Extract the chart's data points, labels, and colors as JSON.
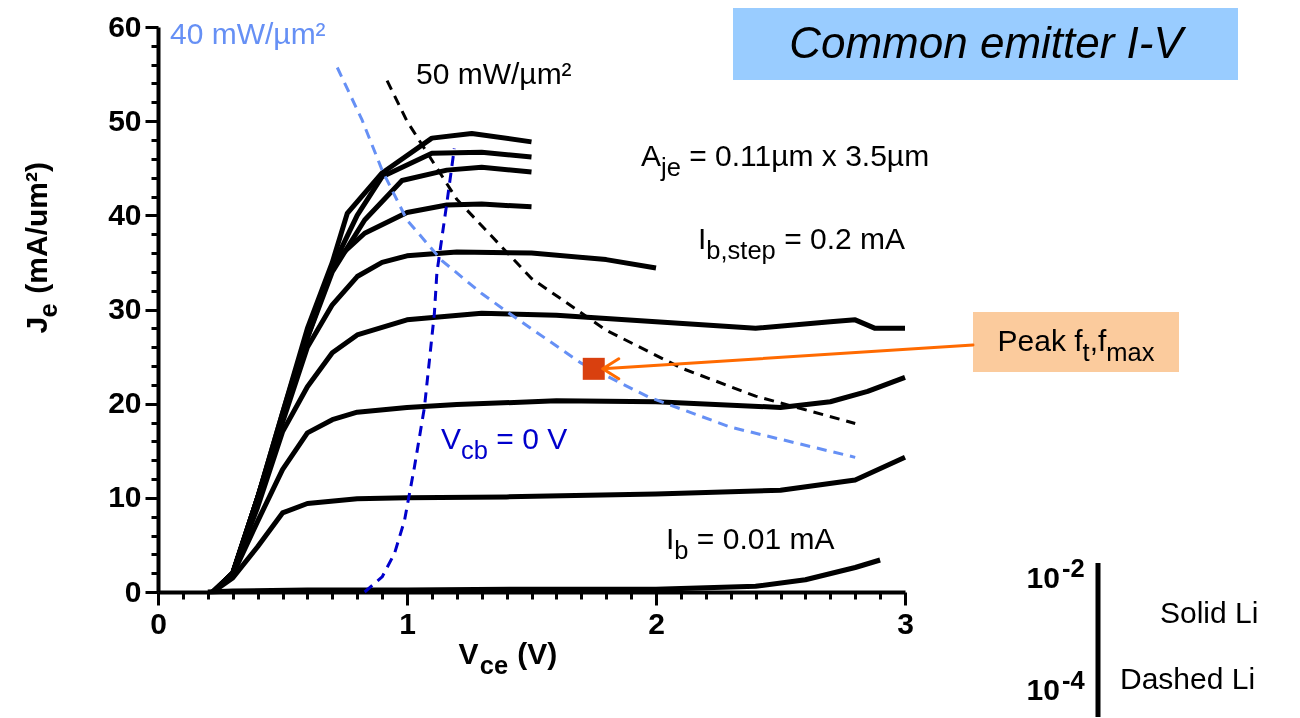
{
  "chart_data": [
    {
      "type": "line",
      "title": "Common emitter I-V",
      "xlabel": "V$_{ce}$ (V)",
      "ylabel": "J$_{e}$ (mA/um²)",
      "xlim": [
        0,
        3
      ],
      "ylim": [
        0,
        60
      ],
      "xticks": [
        0,
        {
          "value": 0.1,
          "label": null
        },
        {
          "value": 0.2,
          "label": null
        },
        {
          "value": 0.3,
          "label": null
        },
        {
          "value": 0.4,
          "label": null
        },
        {
          "value": 0.5,
          "label": null
        },
        {
          "value": 0.6,
          "label": null
        },
        {
          "value": 0.7,
          "label": null
        },
        {
          "value": 0.8,
          "label": null
        },
        {
          "value": 0.9,
          "label": null
        },
        1,
        {
          "value": 1.1,
          "label": null
        },
        {
          "value": 1.2,
          "label": null
        },
        {
          "value": 1.3,
          "label": null
        },
        {
          "value": 1.4,
          "label": null
        },
        {
          "value": 1.5,
          "label": null
        },
        {
          "value": 1.6,
          "label": null
        },
        {
          "value": 1.7,
          "label": null
        },
        {
          "value": 1.8,
          "label": null
        },
        {
          "value": 1.9,
          "label": null
        },
        2,
        {
          "value": 2.1,
          "label": null
        },
        {
          "value": 2.2,
          "label": null
        },
        {
          "value": 2.3,
          "label": null
        },
        {
          "value": 2.4,
          "label": null
        },
        {
          "value": 2.5,
          "label": null
        },
        {
          "value": 2.6,
          "label": null
        },
        {
          "value": 2.7,
          "label": null
        },
        {
          "value": 2.8,
          "label": null
        },
        {
          "value": 2.9,
          "label": null
        },
        3
      ],
      "yticks": [
        0,
        {
          "value": 2,
          "label": null
        },
        {
          "value": 4,
          "label": null
        },
        {
          "value": 6,
          "label": null
        },
        {
          "value": 8,
          "label": null
        },
        10,
        {
          "value": 12,
          "label": null
        },
        {
          "value": 14,
          "label": null
        },
        {
          "value": 16,
          "label": null
        },
        {
          "value": 18,
          "label": null
        },
        20,
        {
          "value": 22,
          "label": null
        },
        {
          "value": 24,
          "label": null
        },
        {
          "value": 26,
          "label": null
        },
        {
          "value": 28,
          "label": null
        },
        30,
        {
          "value": 32,
          "label": null
        },
        {
          "value": 34,
          "label": null
        },
        {
          "value": 36,
          "label": null
        },
        {
          "value": 38,
          "label": null
        },
        40,
        {
          "value": 42,
          "label": null
        },
        {
          "value": 44,
          "label": null
        },
        {
          "value": 46,
          "label": null
        },
        {
          "value": 48,
          "label": null
        },
        50,
        {
          "value": 52,
          "label": null
        },
        {
          "value": 54,
          "label": null
        },
        {
          "value": 56,
          "label": null
        },
        {
          "value": 58,
          "label": null
        },
        60
      ],
      "line_style": "solid",
      "annotations": [
        "A$_{je}$ = 0.11µm x 3.5µm",
        "I$_{b,step}$ = 0.2 mA",
        "Peak f$_{t}$,f$_{max}$"
      ],
      "series": [
        {
          "name": "I$_{b}$ = 0.01 mA",
          "color": "#000000",
          "x": [
            0.2,
            0.3,
            0.6,
            1.0,
            1.5,
            2.0,
            2.4,
            2.6,
            2.8,
            2.9
          ],
          "values": [
            0,
            0.1,
            0.2,
            0.2,
            0.3,
            0.3,
            0.6,
            1.3,
            2.6,
            3.4
          ]
        },
        {
          "color": "#000000",
          "x": [
            0.22,
            0.3,
            0.4,
            0.5,
            0.6,
            0.8,
            1.0,
            1.4,
            2.0,
            2.5,
            2.8,
            3.0
          ],
          "values": [
            0,
            1.5,
            4.8,
            8.4,
            9.4,
            9.9,
            10.0,
            10.1,
            10.4,
            10.8,
            11.9,
            14.3
          ]
        },
        {
          "color": "#000000",
          "x": [
            0.22,
            0.3,
            0.4,
            0.5,
            0.6,
            0.7,
            0.8,
            1.0,
            1.2,
            1.6,
            2.0,
            2.5,
            2.7,
            2.85,
            3.0
          ],
          "values": [
            0,
            1.8,
            7.5,
            13.0,
            16.9,
            18.3,
            19.1,
            19.6,
            19.9,
            20.3,
            20.2,
            19.6,
            20.2,
            21.3,
            22.8
          ]
        },
        {
          "color": "#000000",
          "x": [
            0.22,
            0.3,
            0.4,
            0.5,
            0.6,
            0.7,
            0.8,
            1.0,
            1.3,
            1.6,
            2.0,
            2.4,
            2.7,
            2.8,
            2.88,
            3.0
          ],
          "values": [
            0,
            2,
            9,
            17,
            21.8,
            25.4,
            27.3,
            28.9,
            29.6,
            29.4,
            28.7,
            28.0,
            28.7,
            28.9,
            28.0,
            28.0
          ]
        },
        {
          "color": "#000000",
          "x": [
            0.22,
            0.3,
            0.4,
            0.5,
            0.6,
            0.7,
            0.8,
            0.9,
            1.0,
            1.2,
            1.5,
            1.8,
            2.0
          ],
          "values": [
            0,
            2,
            10,
            18,
            26,
            30.5,
            33.5,
            35,
            35.7,
            36.1,
            36.0,
            35.3,
            34.4
          ]
        },
        {
          "color": "#000000",
          "x": [
            0.22,
            0.3,
            0.4,
            0.5,
            0.6,
            0.71,
            0.83,
            1.0,
            1.16,
            1.3,
            1.5
          ],
          "values": [
            0,
            2,
            10,
            18.5,
            27,
            35.2,
            38.1,
            40.3,
            41.1,
            41.2,
            40.9
          ]
        },
        {
          "color": "#000000",
          "x": [
            0.22,
            0.3,
            0.4,
            0.5,
            0.6,
            0.7,
            0.83,
            0.98,
            1.16,
            1.3,
            1.5
          ],
          "values": [
            0,
            2,
            10,
            18.5,
            27,
            34,
            39.5,
            43.7,
            44.8,
            45.1,
            44.6
          ]
        },
        {
          "color": "#000000",
          "x": [
            0.22,
            0.3,
            0.4,
            0.5,
            0.6,
            0.7,
            0.8,
            0.9,
            1.1,
            1.3,
            1.5
          ],
          "values": [
            0,
            2,
            10,
            19,
            27.5,
            34.5,
            40,
            44.1,
            46.6,
            46.7,
            46.2
          ]
        },
        {
          "color": "#000000",
          "x": [
            0.22,
            0.3,
            0.4,
            0.5,
            0.6,
            0.7,
            0.76,
            0.9,
            1.1,
            1.26,
            1.5
          ],
          "values": [
            0,
            2,
            10,
            19,
            28,
            35,
            40.2,
            44.5,
            48.2,
            48.7,
            47.8
          ]
        },
        {
          "name": "V$_{cb}$ = 0 V",
          "color": "#0000cc",
          "line_style": "dashed",
          "x": [
            0.83,
            0.9,
            0.95,
            0.99,
            1.03,
            1.07,
            1.11,
            1.12,
            1.16,
            1.19
          ],
          "values": [
            0,
            1.6,
            4.1,
            7.6,
            13.3,
            19.6,
            29.6,
            33.9,
            41.3,
            47.1
          ]
        },
        {
          "name": "40 mW/µm²",
          "color": "#6690f5",
          "line_style": "dashed",
          "x": [
            0.72,
            0.82,
            0.9,
            1.0,
            1.14,
            1.3,
            1.41,
            1.7,
            1.97,
            2.3,
            2.8
          ],
          "values": [
            55.7,
            50.1,
            44.8,
            39.5,
            35.2,
            31.7,
            29.6,
            24.3,
            20.7,
            17.5,
            14.3
          ]
        },
        {
          "name": "50 mW/µm²",
          "color": "#000000",
          "line_style": "dashed",
          "x": [
            0.92,
            1.0,
            1.2,
            1.5,
            1.8,
            2.1,
            2.4,
            2.8
          ],
          "values": [
            54.3,
            50,
            41.7,
            33.3,
            27.8,
            23.8,
            20.8,
            17.9
          ]
        },
        {
          "type": "scatter",
          "marker": "square",
          "color": "#d9400f",
          "x": [
            1.75
          ],
          "values": [
            23.7
          ]
        }
      ]
    },
    {
      "type": "other",
      "annotations": [
        "10$^{-2}$",
        "Solid Li",
        "Dashed Li",
        "10$^{-4}$"
      ]
    }
  ]
}
